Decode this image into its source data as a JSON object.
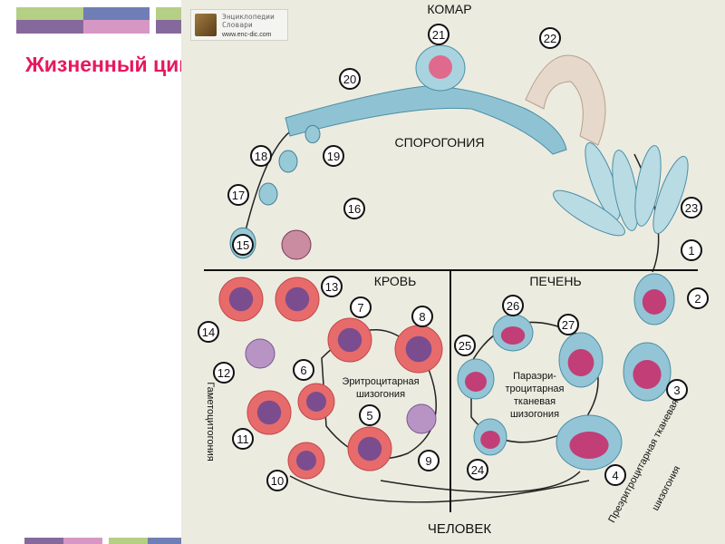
{
  "slide": {
    "title": "Жизненный цикл:",
    "colors": {
      "title": "#e8175d",
      "panel": "#ecebe0",
      "deco_green": "#b5cf84",
      "deco_blue": "#6f7fb5",
      "deco_purple": "#86699c",
      "deco_pink": "#d797c4"
    }
  },
  "logo": {
    "line1": "Энциклопедии",
    "line2": "Словари",
    "url": "www.enc-dic.com"
  },
  "diagram": {
    "host_top": "КОМАР",
    "sporogony": "СПОРОГОНИЯ",
    "blood": "КРОВЬ",
    "liver": "ПЕЧЕНЬ",
    "host_bottom": "ЧЕЛОВЕК",
    "erythro_line1": "Эритроцитарная",
    "erythro_line2": "шизогония",
    "para_line1": "Параэри-",
    "para_line2": "троцитарная",
    "para_line3": "тканевая",
    "para_line4": "шизогония",
    "gametocytogony": "Гаметоцитогония",
    "pre_line1": "Преэритроцитарная  тканевая",
    "pre_line2": "шизогония",
    "stages": [
      "1",
      "2",
      "3",
      "4",
      "5",
      "6",
      "7",
      "8",
      "9",
      "10",
      "11",
      "12",
      "13",
      "14",
      "15",
      "16",
      "17",
      "18",
      "19",
      "20",
      "21",
      "22",
      "23",
      "24",
      "25",
      "26",
      "27"
    ]
  }
}
